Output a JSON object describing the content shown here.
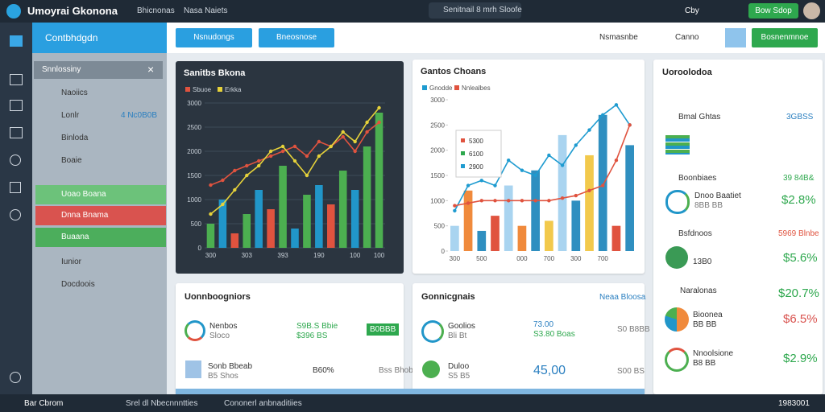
{
  "header": {
    "app_title": "Umoyrai Gkonona",
    "nav": [
      "Bhicnonas",
      "Nasa Naiets"
    ],
    "search": "Senitnail 8 mrh Sloofe",
    "right_label": "Cby",
    "button": "Bow Sdop"
  },
  "sidebar": {
    "header": "Contbhdgdn",
    "section": "Snnlossiny",
    "items": [
      "Naoiics",
      "Lonlr",
      "Binloda",
      "Boaie"
    ],
    "side_value": "4 Nc0B0B",
    "highlight_items": [
      {
        "label": "Uoao Boana",
        "color": "#6cc27a"
      },
      {
        "label": "Dnna Bnama",
        "color": "#d9534f"
      },
      {
        "label": "Buaana",
        "color": "#4cae5c"
      }
    ],
    "more_items": [
      "Iunior",
      "Docdoois"
    ]
  },
  "toolbar": {
    "buttons": [
      "Nsnudongs",
      "Bneosnose"
    ],
    "label1": "Nsmasnbe",
    "label2": "Canno",
    "action": "Bosnenmnoe"
  },
  "chart_data": [
    {
      "type": "combo",
      "title": "Sanitbs Bkona",
      "theme": "dark",
      "grid": true,
      "categories": [
        "300",
        null,
        null,
        "303",
        null,
        null,
        "393",
        null,
        null,
        "190",
        null,
        null,
        "100",
        null,
        "100"
      ],
      "values": [
        500,
        1000,
        300,
        700,
        1200,
        800,
        1700,
        400,
        1100,
        1300,
        900,
        1600,
        1200,
        2100,
        2800
      ],
      "bar_colors": [
        "#4caf50",
        "#2196c9",
        "#e0533f",
        "#4caf50",
        "#2196c9",
        "#e0533f",
        "#4caf50",
        "#2196c9",
        "#4caf50",
        "#2196c9",
        "#e0533f",
        "#4caf50",
        "#2196c9",
        "#4caf50",
        "#4caf50"
      ],
      "series": [
        {
          "name": "Sbuoe",
          "color": "#e0533f",
          "values": [
            1300,
            1400,
            1600,
            1700,
            1800,
            1900,
            2000,
            2100,
            1900,
            2200,
            2100,
            2300,
            2000,
            2400,
            2600
          ]
        },
        {
          "name": "Erkka",
          "color": "#e6d23a",
          "values": [
            700,
            900,
            1200,
            1500,
            1700,
            2000,
            2100,
            1800,
            1500,
            1900,
            2100,
            2400,
            2200,
            2600,
            2900
          ]
        }
      ],
      "ylim": [
        0,
        3000
      ],
      "yticks": [
        0,
        500,
        1000,
        1500,
        2000,
        2500,
        3000
      ]
    },
    {
      "type": "combo",
      "title": "Gantos Choans",
      "theme": "light",
      "grid": false,
      "categories": [
        "300",
        null,
        "500",
        null,
        null,
        "000",
        null,
        "700",
        null,
        "300",
        null,
        "700",
        null,
        null
      ],
      "values": [
        500,
        1200,
        400,
        700,
        1300,
        500,
        1600,
        600,
        2300,
        1000,
        1900,
        2700,
        500,
        2100
      ],
      "bar_colors": [
        "#a9d4f0",
        "#f08a3c",
        "#2f8fc0",
        "#e0533f",
        "#a9d4f0",
        "#f08a3c",
        "#2f8fc0",
        "#f2c94c",
        "#a9d4f0",
        "#2f8fc0",
        "#f2c94c",
        "#2f8fc0",
        "#e0533f",
        "#2f8fc0"
      ],
      "series": [
        {
          "name": "Gnodde",
          "color": "#1e9bd0",
          "values": [
            800,
            1300,
            1400,
            1300,
            1800,
            1600,
            1500,
            1900,
            1700,
            2100,
            2400,
            2700,
            2900,
            2500
          ]
        },
        {
          "name": "Nnlealbes",
          "color": "#e0533f",
          "values": [
            900,
            950,
            1000,
            1000,
            1000,
            1000,
            1000,
            1000,
            1050,
            1100,
            1200,
            1300,
            1800,
            2500
          ]
        }
      ],
      "ylim": [
        0,
        3000
      ],
      "yticks": [
        0,
        500,
        1000,
        1500,
        2000,
        2500,
        3000
      ],
      "annotations": [
        "5300",
        "6100",
        "2900"
      ]
    }
  ],
  "summary": {
    "title": "Uoroolodoa",
    "rows": [
      {
        "label": "Bmal Ghtas",
        "value": "3GBSS"
      },
      {
        "label": "Boonbiaes",
        "sub": "Dnoo Baatiet",
        "note": "8BB BB",
        "tag": "39 84B&",
        "value": "$2.8%"
      },
      {
        "label": "Bsfdnoos",
        "sub": "13B0",
        "tag": "5969 Blnbe",
        "value": "$5.6%"
      },
      {
        "label": "Naralonas",
        "sub": "Bioonea",
        "value": "$20.7%"
      },
      {
        "label": "Bioonea",
        "sub": "BB BB",
        "value": "$6.5%"
      },
      {
        "label": "Nnoolsione",
        "sub": "B8 BB",
        "value": "$2.9%"
      }
    ]
  },
  "bottom_left": {
    "title": "Uonnboogniors",
    "rows": [
      {
        "label": "Nenbos",
        "sub": "Sloco",
        "mid": "S9B.S Bbie",
        "mid2": "$396 BS",
        "badge": "B0BBB"
      },
      {
        "label": "Sonb Bbeab",
        "sub": "B5 Shos",
        "mid": "B60%",
        "mid2": "Bss Bhob"
      }
    ]
  },
  "bottom_middle": {
    "title": "Gonnicgnais",
    "link": "Neaa Bloosa",
    "rows": [
      {
        "label": "Goolios",
        "sub": "Bli Bt",
        "big": "73.00",
        "small": "S3.80 Boas",
        "side": "S0 B8BB"
      },
      {
        "label": "Duloo",
        "sub": "S5 B5",
        "big": "45,00",
        "side": "S00 BS"
      }
    ]
  },
  "footer": {
    "left": "Bar Cbrom",
    "tabs": [
      "Srel dl Nbecnnntties",
      "Cononerl anbnaditiies"
    ],
    "right": "1983001"
  }
}
